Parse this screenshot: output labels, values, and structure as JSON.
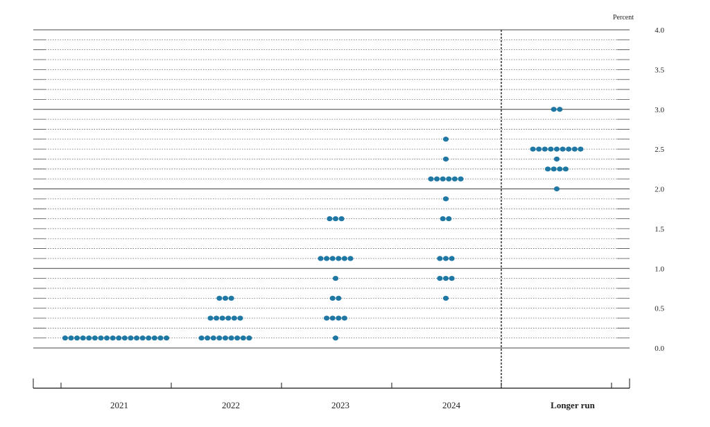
{
  "chart_data": {
    "type": "scatter",
    "unit_label": "Percent",
    "ylim": [
      -0.375,
      4.0
    ],
    "y_ticks": [
      "0.0",
      "0.5",
      "1.0",
      "1.5",
      "2.0",
      "2.5",
      "3.0",
      "3.5",
      "4.0"
    ],
    "y_tick_values": [
      0.0,
      0.5,
      1.0,
      1.5,
      2.0,
      2.5,
      3.0,
      3.5,
      4.0
    ],
    "categories": [
      "2021",
      "2022",
      "2023",
      "2024",
      "Longer run"
    ],
    "dot_color": "#1f77a4",
    "points": [
      {
        "category": "2021",
        "value": 0.125,
        "count": 18
      },
      {
        "category": "2022",
        "value": 0.125,
        "count": 9
      },
      {
        "category": "2022",
        "value": 0.375,
        "count": 6
      },
      {
        "category": "2022",
        "value": 0.625,
        "count": 3
      },
      {
        "category": "2023",
        "value": 0.125,
        "count": 1
      },
      {
        "category": "2023",
        "value": 0.375,
        "count": 4
      },
      {
        "category": "2023",
        "value": 0.625,
        "count": 2
      },
      {
        "category": "2023",
        "value": 0.875,
        "count": 1
      },
      {
        "category": "2023",
        "value": 1.125,
        "count": 6
      },
      {
        "category": "2023",
        "value": 1.625,
        "count": 3
      },
      {
        "category": "2024",
        "value": 0.625,
        "count": 1
      },
      {
        "category": "2024",
        "value": 0.875,
        "count": 3
      },
      {
        "category": "2024",
        "value": 1.125,
        "count": 3
      },
      {
        "category": "2024",
        "value": 1.625,
        "count": 2
      },
      {
        "category": "2024",
        "value": 1.875,
        "count": 1
      },
      {
        "category": "2024",
        "value": 2.125,
        "count": 6
      },
      {
        "category": "2024",
        "value": 2.375,
        "count": 1
      },
      {
        "category": "2024",
        "value": 2.625,
        "count": 1
      },
      {
        "category": "Longer run",
        "value": 2.0,
        "count": 1
      },
      {
        "category": "Longer run",
        "value": 2.25,
        "count": 4
      },
      {
        "category": "Longer run",
        "value": 2.375,
        "count": 1
      },
      {
        "category": "Longer run",
        "value": 2.5,
        "count": 9
      },
      {
        "category": "Longer run",
        "value": 3.0,
        "count": 2
      }
    ]
  }
}
